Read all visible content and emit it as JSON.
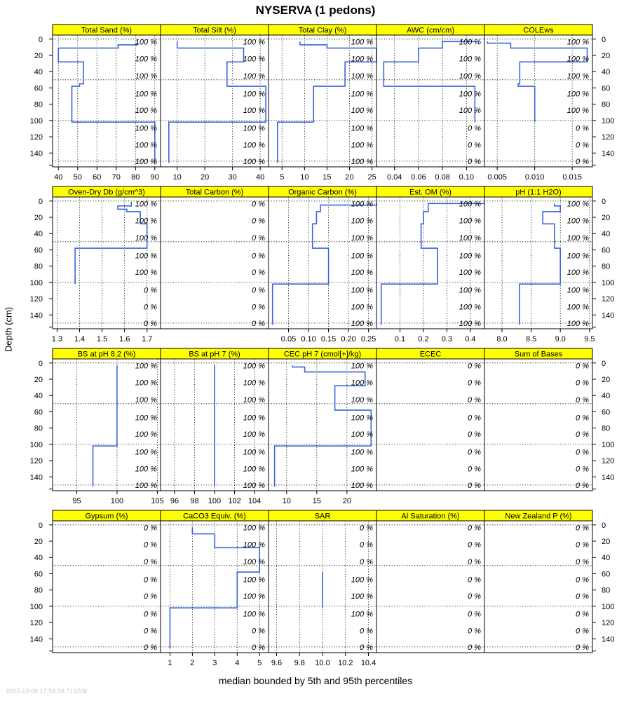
{
  "chart_data": {
    "type": "line",
    "title": "NYSERVA (1 pedons)",
    "xlabel": "median bounded by 5th and 95th percentiles",
    "ylabel": "Depth (cm)",
    "timestamp": "2025-10-08 17:54:39.713206",
    "depth_ylim": [
      157,
      -5
    ],
    "depth_ticks": [
      0,
      20,
      40,
      60,
      80,
      100,
      120,
      140
    ],
    "depth_gridlines": [
      0,
      50,
      100,
      150
    ],
    "label_depths": [
      3,
      24,
      45,
      67,
      87,
      109,
      130,
      150
    ],
    "rows": [
      {
        "xlim": [
          [
            37,
            93
          ],
          [
            4,
            43
          ],
          [
            2,
            26
          ],
          [
            0.025,
            0.115
          ],
          [
            0.0033,
            0.0177
          ]
        ],
        "xticks": [
          [
            40,
            50,
            60,
            70,
            80,
            90
          ],
          [
            10,
            20,
            30,
            40
          ],
          [
            5,
            10,
            15,
            20,
            25
          ],
          [
            0.04,
            0.06,
            0.08,
            0.1
          ],
          [
            0.005,
            0.01,
            0.015
          ]
        ],
        "xticklabels": [
          [
            "40",
            "50",
            "60",
            "70",
            "80",
            "90"
          ],
          [
            "10",
            "20",
            "30",
            "40"
          ],
          [
            "5",
            "10",
            "15",
            "20",
            "25"
          ],
          [
            "0.04",
            "0.06",
            "0.08",
            "0.10"
          ],
          [
            "0.005",
            "0.010",
            "0.015"
          ]
        ]
      },
      {
        "xlim": [
          [
            1.28,
            1.76
          ],
          [
            0,
            1
          ],
          [
            0,
            0.27
          ],
          [
            0,
            0.46
          ],
          [
            7.7,
            9.55
          ]
        ],
        "xticks": [
          [
            1.3,
            1.4,
            1.5,
            1.6,
            1.7
          ],
          [],
          [
            0.05,
            0.1,
            0.15,
            0.2,
            0.25
          ],
          [
            0.1,
            0.2,
            0.3,
            0.4
          ],
          [
            8.0,
            8.5,
            9.0,
            9.5
          ]
        ],
        "xticklabels": [
          [
            "1.3",
            "1.4",
            "1.5",
            "1.6",
            "1.7"
          ],
          [],
          [
            "0.05",
            "0.10",
            "0.15",
            "0.20",
            "0.25"
          ],
          [
            "0.1",
            "0.2",
            "0.3",
            "0.4"
          ],
          [
            "8.0",
            "8.5",
            "9.0",
            "9.5"
          ]
        ]
      },
      {
        "xlim": [
          [
            92,
            105.4
          ],
          [
            94.6,
            105.4
          ],
          [
            7,
            24.9
          ],
          [
            0,
            1
          ],
          [
            0,
            1
          ]
        ],
        "xticks": [
          [
            95,
            100,
            105
          ],
          [
            96,
            98,
            100,
            102,
            104
          ],
          [
            10,
            15,
            20
          ],
          [],
          []
        ],
        "xticklabels": [
          [
            "95",
            "100",
            "105"
          ],
          [
            "96",
            "98",
            "100",
            "102",
            "104"
          ],
          [
            "10",
            "15",
            "20"
          ],
          [],
          []
        ]
      },
      {
        "xlim": [
          [
            0,
            1
          ],
          [
            0.58,
            5.4
          ],
          [
            9.53,
            10.47
          ],
          [
            0,
            1
          ],
          [
            0,
            1
          ]
        ],
        "xticks": [
          [],
          [
            1,
            2,
            3,
            4,
            5
          ],
          [
            9.6,
            9.8,
            10.0,
            10.2,
            10.4
          ],
          [],
          []
        ],
        "xticklabels": [
          [],
          [
            "1",
            "2",
            "3",
            "4",
            "5"
          ],
          [
            "9.6",
            "9.8",
            "10.0",
            "10.2",
            "10.4"
          ],
          [],
          []
        ]
      }
    ],
    "panels": [
      {
        "name": "Total Sand (%)",
        "series": [
          {
            "x": [
              81,
              81,
              71,
              71,
              40,
              40,
              53,
              53,
              51,
              51,
              47,
              47,
              90,
              90
            ],
            "y": [
              3,
              7,
              7,
              11,
              11,
              28,
              28,
              55,
              55,
              58,
              58,
              102,
              102,
              152
            ]
          }
        ],
        "percent_labels": [
          "100 %",
          "100 %",
          "100 %",
          "100 %",
          "100 %",
          "100 %",
          "100 %",
          "100 %"
        ]
      },
      {
        "name": "Total Silt (%)",
        "series": [
          {
            "x": [
              10,
              10,
              34,
              34,
              28,
              28,
              42,
              42,
              7,
              7
            ],
            "y": [
              3,
              11,
              11,
              28,
              28,
              58,
              58,
              102,
              102,
              152
            ]
          }
        ],
        "percent_labels": [
          "100 %",
          "100 %",
          "100 %",
          "100 %",
          "100 %",
          "100 %",
          "100 %",
          "100 %"
        ]
      },
      {
        "name": "Total Clay (%)",
        "series": [
          {
            "x": [
              9,
              9,
              15,
              15,
              26,
              26,
              19,
              19,
              12,
              12,
              4,
              4
            ],
            "y": [
              3,
              7,
              7,
              11,
              11,
              28,
              28,
              58,
              58,
              102,
              102,
              152
            ]
          }
        ],
        "percent_labels": [
          "100 %",
          "100 %",
          "100 %",
          "100 %",
          "100 %",
          "100 %",
          "100 %",
          "100 %"
        ]
      },
      {
        "name": "AWC (cm/cm)",
        "series": [
          {
            "x": [
              0.108,
              0.08,
              0.08,
              0.06,
              0.06,
              0.031,
              0.031,
              0.107,
              0.107
            ],
            "y": [
              3,
              3,
              11,
              11,
              28,
              28,
              58,
              58,
              102
            ]
          }
        ],
        "percent_labels": [
          "100 %",
          "100 %",
          "100 %",
          "100 %",
          "100 %",
          "0 %",
          "0 %",
          "0 %"
        ]
      },
      {
        "name": "COLEws",
        "series": [
          {
            "x": [
              0.0037,
              0.0037,
              0.0068,
              0.0068,
              0.017,
              0.017,
              0.008,
              0.008,
              0.0078,
              0.0078,
              0.01,
              0.01
            ],
            "y": [
              3,
              5,
              5,
              11,
              11,
              28,
              28,
              55,
              55,
              58,
              58,
              102
            ]
          }
        ],
        "percent_labels": [
          "100 %",
          "100 %",
          "100 %",
          "100 %",
          "100 %",
          "0 %",
          "0 %",
          "0 %"
        ]
      },
      {
        "name": "Oven-Dry Db (g/cm^3)",
        "series": [
          {
            "x": [
              1.63,
              1.63,
              1.57,
              1.57,
              1.61,
              1.61,
              1.67,
              1.67,
              1.7,
              1.7,
              1.38,
              1.38
            ],
            "y": [
              1,
              6,
              6,
              10,
              10,
              13,
              13,
              28,
              28,
              58,
              58,
              102
            ]
          }
        ],
        "percent_labels": [
          "100 %",
          "100 %",
          "100 %",
          "100 %",
          "100 %",
          "0 %",
          "0 %",
          "0 %"
        ]
      },
      {
        "name": "Total Carbon (%)",
        "series": [],
        "percent_labels": [
          "0 %",
          "0 %",
          "0 %",
          "0 %",
          "0 %",
          "0 %",
          "0 %",
          "0 %"
        ]
      },
      {
        "name": "Organic Carbon (%)",
        "series": [
          {
            "x": [
              0.27,
              0.27,
              0.13,
              0.13,
              0.12,
              0.12,
              0.11,
              0.11,
              0.15,
              0.15,
              0.01,
              0.01
            ],
            "y": [
              3,
              5,
              5,
              13,
              13,
              28,
              28,
              58,
              58,
              102,
              102,
              152
            ]
          }
        ],
        "percent_labels": [
          "100 %",
          "100 %",
          "100 %",
          "100 %",
          "100 %",
          "100 %",
          "100 %",
          "100 %"
        ]
      },
      {
        "name": "Est. OM (%)",
        "series": [
          {
            "x": [
              0.46,
              0.22,
              0.22,
              0.2,
              0.2,
              0.19,
              0.19,
              0.26,
              0.26,
              0.02,
              0.02
            ],
            "y": [
              3,
              3,
              13,
              13,
              28,
              28,
              58,
              58,
              102,
              102,
              152
            ]
          }
        ],
        "percent_labels": [
          "100 %",
          "100 %",
          "100 %",
          "100 %",
          "100 %",
          "100 %",
          "100 %",
          "100 %"
        ]
      },
      {
        "name": "pH (1:1 H2O)",
        "series": [
          {
            "x": [
              8.9,
              8.9,
              9.0,
              9.0,
              8.7,
              8.7,
              8.9,
              8.9,
              9.0,
              9.0,
              8.3,
              8.3
            ],
            "y": [
              3,
              6,
              6,
              13,
              13,
              28,
              28,
              58,
              58,
              102,
              102,
              152
            ]
          }
        ],
        "percent_labels": [
          "100 %",
          "100 %",
          "100 %",
          "100 %",
          "100 %",
          "100 %",
          "100 %",
          "100 %"
        ]
      },
      {
        "name": "BS at pH 8.2 (%)",
        "series": [
          {
            "x": [
              100,
              100,
              97,
              97
            ],
            "y": [
              3,
              102,
              102,
              152
            ]
          }
        ],
        "percent_labels": [
          "100 %",
          "100 %",
          "100 %",
          "100 %",
          "100 %",
          "100 %",
          "100 %",
          "100 %"
        ]
      },
      {
        "name": "BS at pH 7 (%)",
        "series": [
          {
            "x": [
              100,
              100
            ],
            "y": [
              3,
              152
            ]
          }
        ],
        "percent_labels": [
          "100 %",
          "100 %",
          "100 %",
          "100 %",
          "100 %",
          "100 %",
          "100 %",
          "100 %"
        ]
      },
      {
        "name": "CEC pH 7 (cmol[+]/kg)",
        "series": [
          {
            "x": [
              11,
              11,
              13,
              13,
              23,
              23,
              18,
              18,
              24,
              24,
              8,
              8
            ],
            "y": [
              3,
              5,
              5,
              11,
              11,
              28,
              28,
              58,
              58,
              102,
              102,
              152
            ]
          }
        ],
        "percent_labels": [
          "100 %",
          "100 %",
          "100 %",
          "100 %",
          "100 %",
          "100 %",
          "100 %",
          "100 %"
        ]
      },
      {
        "name": "ECEC",
        "series": [],
        "percent_labels": [
          "0 %",
          "0 %",
          "0 %",
          "0 %",
          "0 %",
          "0 %",
          "0 %",
          "0 %"
        ]
      },
      {
        "name": "Sum of Bases",
        "series": [],
        "percent_labels": [
          "0 %",
          "0 %",
          "0 %",
          "0 %",
          "0 %",
          "0 %",
          "0 %",
          "0 %"
        ]
      },
      {
        "name": "Gypsum (%)",
        "series": [],
        "percent_labels": [
          "0 %",
          "0 %",
          "0 %",
          "0 %",
          "0 %",
          "0 %",
          "0 %",
          "0 %"
        ]
      },
      {
        "name": "CaCO3 Equiv. (%)",
        "series": [
          {
            "x": [
              2,
              2,
              3,
              3,
              5,
              5,
              4,
              4,
              1,
              1
            ],
            "y": [
              3,
              11,
              11,
              28,
              28,
              58,
              58,
              102,
              102,
              152
            ]
          }
        ],
        "percent_labels": [
          "100 %",
          "100 %",
          "100 %",
          "100 %",
          "100 %",
          "100 %",
          "0 %",
          "0 %"
        ]
      },
      {
        "name": "SAR",
        "series": [
          {
            "x": [
              10,
              10
            ],
            "y": [
              58,
              102
            ]
          }
        ],
        "percent_labels": [
          "0 %",
          "0 %",
          "0 %",
          "100 %",
          "100 %",
          "100 %",
          "0 %",
          "0 %"
        ]
      },
      {
        "name": "Al Saturation (%)",
        "series": [],
        "percent_labels": [
          "0 %",
          "0 %",
          "0 %",
          "0 %",
          "0 %",
          "0 %",
          "0 %",
          "0 %"
        ]
      },
      {
        "name": "New Zealand P (%)",
        "series": [],
        "percent_labels": [
          "0 %",
          "0 %",
          "0 %",
          "0 %",
          "0 %",
          "0 %",
          "0 %",
          "0 %"
        ]
      }
    ]
  },
  "colors": {
    "strip": "#ffff00",
    "line": "#3a66d8",
    "grid": "#000000",
    "stamp": "#cccccc"
  }
}
